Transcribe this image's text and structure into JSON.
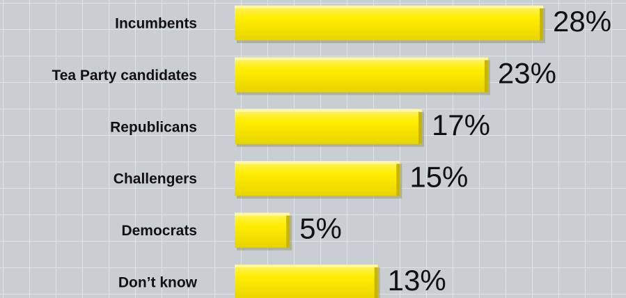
{
  "chart_data": {
    "type": "bar",
    "orientation": "horizontal",
    "categories": [
      "Incumbents",
      "Tea Party candidates",
      "Republicans",
      "Challengers",
      "Democrats",
      "Don’t know"
    ],
    "values": [
      28,
      23,
      17,
      15,
      5,
      13
    ],
    "value_labels": [
      "28%",
      "23%",
      "17%",
      "15%",
      "5%",
      "13%"
    ],
    "color": "#ffee00"
  }
}
